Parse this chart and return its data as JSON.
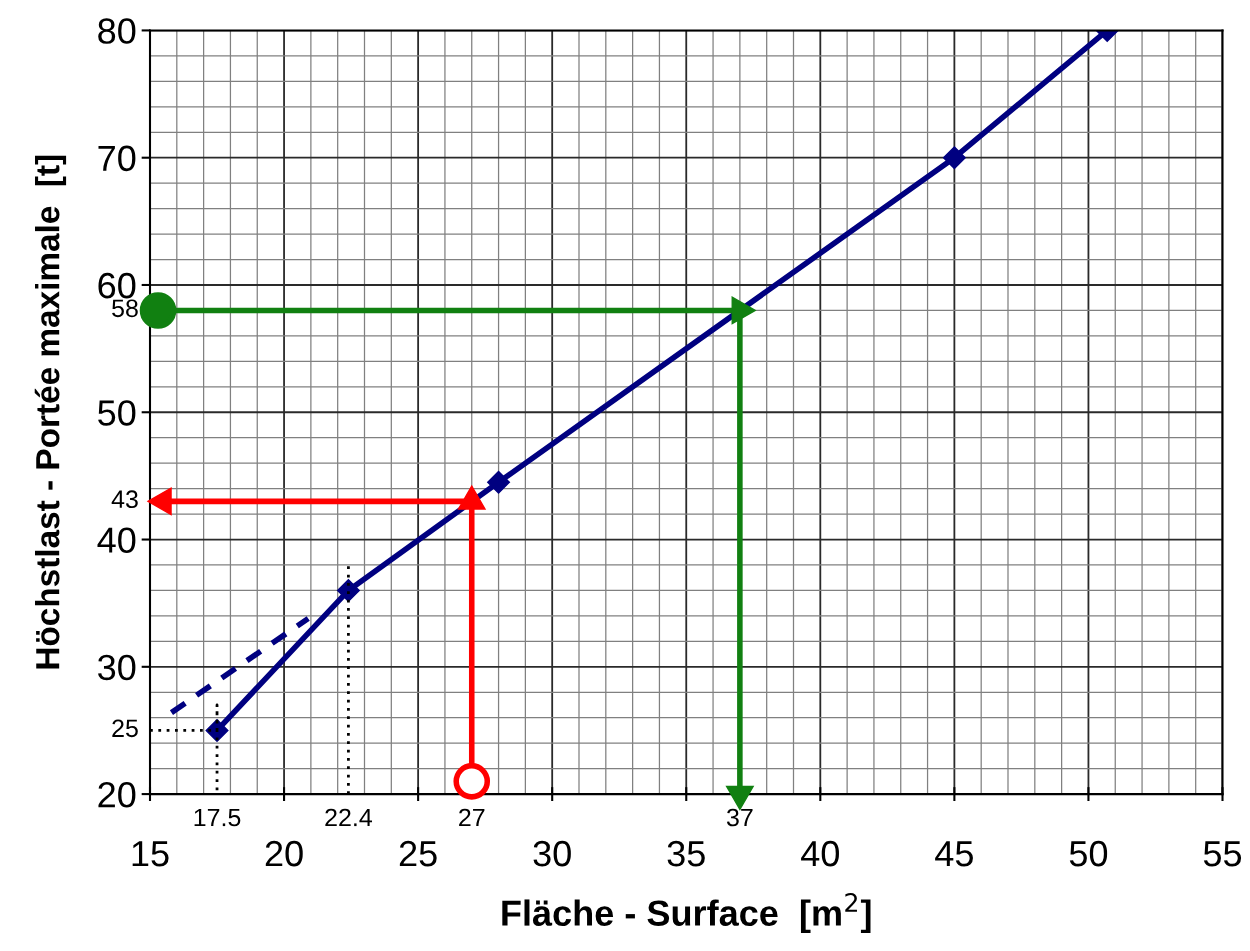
{
  "chart_data": {
    "type": "line",
    "xlabel": "Fläche - Surface  [m$^{2}$]",
    "ylabel": "Höchstlast - Portée maximale  [t]",
    "xlim": [
      15,
      55
    ],
    "xticks": [
      15,
      20,
      25,
      30,
      35,
      40,
      45,
      50,
      55
    ],
    "ylim": [
      20,
      80
    ],
    "yticks": [
      20,
      30,
      40,
      50,
      60,
      70,
      80
    ],
    "grid": true,
    "series": [
      {
        "type": "line",
        "x": [
          17.5,
          22.4,
          28,
          45,
          50.7
        ],
        "values": [
          25,
          36,
          44.5,
          70,
          80
        ],
        "color": "#000080",
        "marker": "diamond",
        "line_style": "solid"
      },
      {
        "type": "line",
        "x": [
          15.8,
          20.9
        ],
        "values": [
          26.4,
          33.8
        ],
        "color": "#000080",
        "marker": "none",
        "line_style": "dashed"
      },
      {
        "type": "line",
        "x": [
          15,
          17.5,
          17.5,
          17.5
        ],
        "values": [
          25,
          25,
          27,
          20
        ],
        "color": "#000000",
        "marker": "none",
        "line_style": "dotted"
      },
      {
        "type": "line",
        "x": [
          22.4,
          22.4
        ],
        "values": [
          20,
          38
        ],
        "color": "#000000",
        "marker": "none",
        "line_style": "dotted"
      },
      {
        "type": "line",
        "x": [
          16,
          37,
          37
        ],
        "values": [
          58,
          58,
          20
        ],
        "color": "#118011",
        "marker": "triangle",
        "line_style": "solid"
      },
      {
        "type": "line",
        "x": [
          27,
          27,
          15.5
        ],
        "values": [
          22,
          43,
          43
        ],
        "color": "#ff0000",
        "marker": "triangle",
        "line_style": "solid"
      },
      {
        "type": "scatter",
        "x": [
          15.3
        ],
        "values": [
          58
        ],
        "color": "#118011",
        "marker": "circle"
      },
      {
        "type": "scatter",
        "x": [
          27
        ],
        "values": [
          21
        ],
        "color": "#ff0000",
        "colors": [
          "#ffffff"
        ],
        "marker": "circle"
      }
    ],
    "annotations": [
      {
        "text": "17.5",
        "x": 17.5,
        "y": 20
      },
      {
        "text": "22.4",
        "x": 22.4,
        "y": 20
      },
      {
        "text": "27",
        "x": 27,
        "y": 21
      },
      {
        "text": "37",
        "x": 37,
        "y": 20
      },
      {
        "text": "25",
        "x": 15,
        "y": 25
      },
      {
        "text": "43",
        "x": 15.5,
        "y": 43
      },
      {
        "text": "58",
        "x": 15.3,
        "y": 58
      }
    ]
  }
}
